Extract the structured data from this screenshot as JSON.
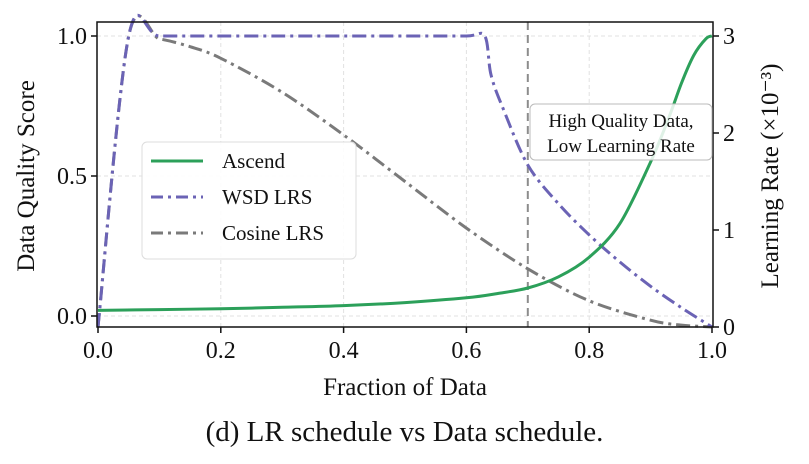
{
  "caption": "(d) LR schedule vs Data schedule.",
  "chart_data": {
    "type": "line",
    "title": "",
    "xlabel": "Fraction of Data",
    "ylabel": "Data Quality Score",
    "ylabel_right": "Learning Rate (×10⁻³)",
    "xlim": [
      0.0,
      1.0
    ],
    "ylim": [
      -0.04,
      1.07
    ],
    "ylim_right": [
      0,
      3.2
    ],
    "xticks": [
      "0.0",
      "0.2",
      "0.4",
      "0.6",
      "0.8",
      "1.0"
    ],
    "xtick_values": [
      0.0,
      0.2,
      0.4,
      0.6,
      0.8,
      1.0
    ],
    "yticks": [
      "0.0",
      "0.5",
      "1.0"
    ],
    "ytick_values": [
      0.0,
      0.5,
      1.0
    ],
    "yticks_right": [
      "0",
      "1",
      "2",
      "3"
    ],
    "ytick_values_right": [
      0,
      1,
      2,
      3
    ],
    "grid": true,
    "legend_position": "center-left",
    "annotation": {
      "lines": [
        "High Quality Data,",
        "Low Learning Rate"
      ],
      "x": 0.7,
      "vline_x": 0.7
    },
    "series": [
      {
        "name": "Ascend",
        "axis": "left",
        "color": "#2ca05a",
        "style": "solid",
        "x": [
          0.0,
          0.1,
          0.2,
          0.3,
          0.4,
          0.5,
          0.6,
          0.65,
          0.7,
          0.75,
          0.8,
          0.85,
          0.9,
          0.93,
          0.95,
          0.97,
          0.99,
          1.0
        ],
        "y": [
          0.02,
          0.023,
          0.026,
          0.031,
          0.037,
          0.048,
          0.065,
          0.08,
          0.1,
          0.14,
          0.21,
          0.33,
          0.55,
          0.71,
          0.83,
          0.93,
          0.99,
          1.0
        ]
      },
      {
        "name": "WSD LRS",
        "axis": "right",
        "color": "#6b63b5",
        "style": "dashdot",
        "x": [
          0.0,
          0.05,
          0.1,
          0.2,
          0.3,
          0.4,
          0.5,
          0.6,
          0.63,
          0.64,
          0.66,
          0.7,
          0.75,
          0.8,
          0.85,
          0.9,
          0.95,
          1.0
        ],
        "y": [
          0.0,
          3.0,
          3.0,
          3.0,
          3.0,
          3.0,
          3.0,
          3.0,
          3.0,
          2.6,
          2.25,
          1.67,
          1.27,
          0.95,
          0.67,
          0.42,
          0.2,
          0.0
        ]
      },
      {
        "name": "Cosine LRS",
        "axis": "right",
        "color": "#7a7a7a",
        "style": "dashdot",
        "x": [
          0.0,
          0.05,
          0.1,
          0.15,
          0.2,
          0.3,
          0.4,
          0.5,
          0.6,
          0.7,
          0.8,
          0.9,
          0.95,
          1.0
        ],
        "y": [
          0.0,
          3.0,
          2.97,
          2.89,
          2.77,
          2.42,
          1.98,
          1.5,
          1.02,
          0.6,
          0.27,
          0.07,
          0.02,
          0.0
        ]
      }
    ]
  }
}
